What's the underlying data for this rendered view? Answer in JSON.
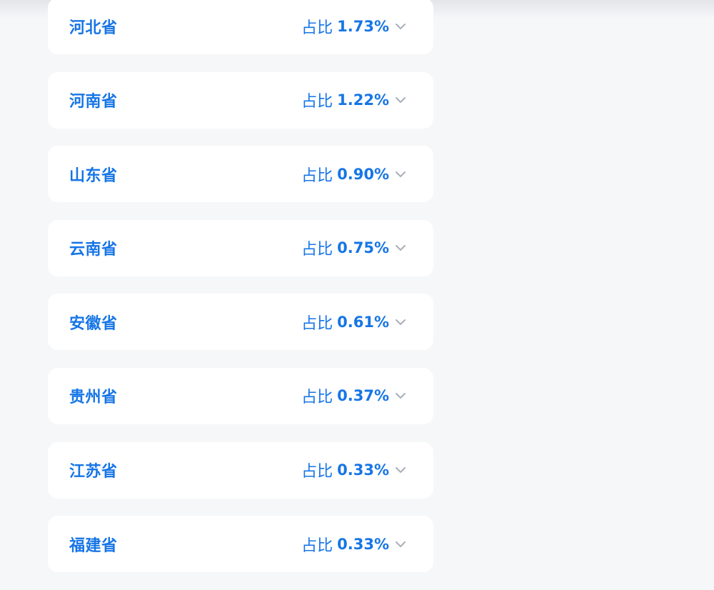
{
  "colors": {
    "background": "#f6f7f9",
    "card": "#ffffff",
    "accent": "#1675e6",
    "chevron": "#a9afb8"
  },
  "icons": {
    "expand": "chevron-down-icon"
  },
  "share_label": "占比",
  "provinces": [
    {
      "name": "河北省",
      "share": "1.73%"
    },
    {
      "name": "河南省",
      "share": "1.22%"
    },
    {
      "name": "山东省",
      "share": "0.90%"
    },
    {
      "name": "云南省",
      "share": "0.75%"
    },
    {
      "name": "安徽省",
      "share": "0.61%"
    },
    {
      "name": "贵州省",
      "share": "0.37%"
    },
    {
      "name": "江苏省",
      "share": "0.33%"
    },
    {
      "name": "福建省",
      "share": "0.33%"
    }
  ]
}
